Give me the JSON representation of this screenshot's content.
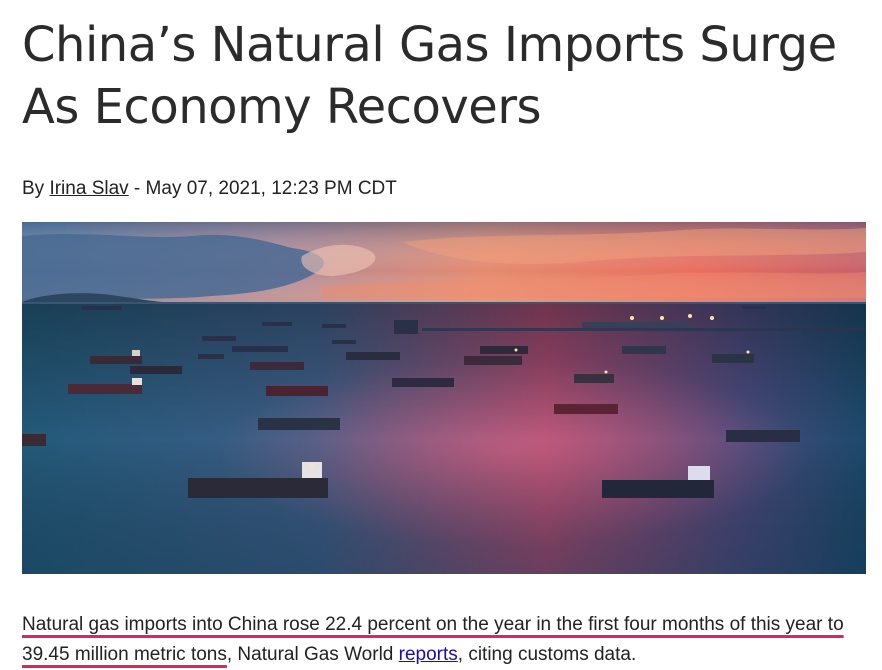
{
  "article": {
    "title": "China’s Natural Gas Imports Surge As Economy Recovers",
    "byline_prefix": "By ",
    "author": "Irina Slav",
    "date_separator": " - ",
    "date": "May 07, 2021, 12:23 PM CDT",
    "hero_image": {
      "subject": "tankers-at-sea-sunset-photo"
    },
    "paragraph": {
      "highlighted": "Natural gas imports into China rose 22.4 percent on the year in the first four months of this year to 39.45 million metric tons",
      "middle": ", Natural Gas World ",
      "link": "reports",
      "end": ", citing customs data."
    },
    "colors": {
      "highlight_underline": "#e0245e",
      "link": "#1a0dab",
      "text": "#222222"
    }
  }
}
